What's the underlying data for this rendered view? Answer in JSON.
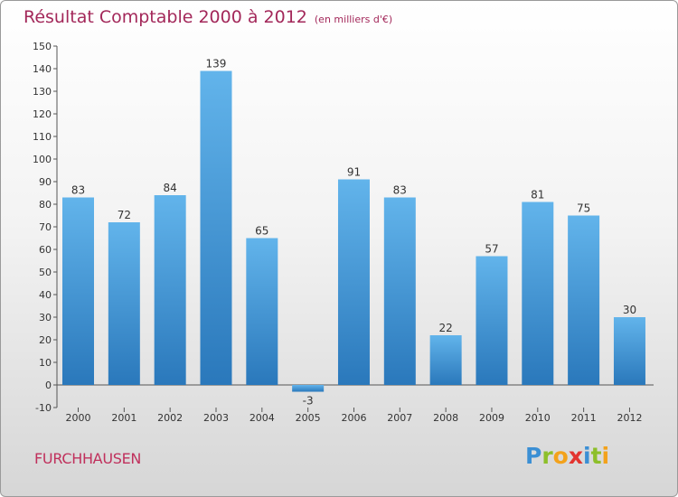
{
  "title": "Résultat Comptable 2000 à 2012",
  "subtitle": "(en milliers d'€)",
  "commune": "FURCHHAUSEN",
  "logo": {
    "letters": [
      "P",
      "r",
      "o",
      "x",
      "i",
      "t",
      "i"
    ],
    "colors": [
      "#3b8fd4",
      "#8dbf2a",
      "#f3a21b",
      "#e3342f",
      "#3b8fd4",
      "#8dbf2a",
      "#f3a21b"
    ]
  },
  "colors": {
    "bar_top": "#62b4eb",
    "bar_bottom": "#2a78bb",
    "title": "#a3285a"
  },
  "chart_data": {
    "type": "bar",
    "title": "Résultat Comptable 2000 à 2012",
    "ylabel": "en milliers d'€",
    "categories": [
      "2000",
      "2001",
      "2002",
      "2003",
      "2004",
      "2005",
      "2006",
      "2007",
      "2008",
      "2009",
      "2010",
      "2011",
      "2012"
    ],
    "values": [
      83,
      72,
      84,
      139,
      65,
      -3,
      91,
      83,
      22,
      57,
      81,
      75,
      30
    ],
    "ylim": [
      -10,
      150
    ],
    "yticks": [
      -10,
      0,
      10,
      20,
      30,
      40,
      50,
      60,
      70,
      80,
      90,
      100,
      110,
      120,
      130,
      140,
      150
    ],
    "grid": false,
    "legend": "none"
  }
}
